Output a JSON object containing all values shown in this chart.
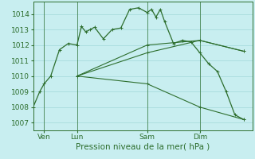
{
  "title": "Pression niveau de la mer( hPa )",
  "bg_color": "#c8eef0",
  "grid_color": "#a0d8d8",
  "line_color": "#2d6e2d",
  "marker": "+",
  "ylim": [
    1006.5,
    1014.8
  ],
  "yticks": [
    1007,
    1008,
    1009,
    1010,
    1011,
    1012,
    1013,
    1014
  ],
  "xlim": [
    0,
    100
  ],
  "xtick_positions": [
    5,
    20,
    52,
    76
  ],
  "xtick_labels": [
    "Ven",
    "Lun",
    "Sam",
    "Dim"
  ],
  "vlines": [
    5,
    20,
    52,
    76
  ],
  "series_main": {
    "x": [
      0,
      3,
      5,
      8,
      12,
      16,
      20,
      22,
      24,
      26,
      28,
      32,
      36,
      40,
      44,
      48,
      52,
      54,
      56,
      58,
      60,
      64,
      68,
      72,
      76,
      80,
      84,
      88,
      92,
      96
    ],
    "y": [
      1008.0,
      1009.0,
      1009.5,
      1010.0,
      1011.7,
      1012.1,
      1012.0,
      1013.2,
      1012.85,
      1013.0,
      1013.15,
      1012.4,
      1013.0,
      1013.1,
      1014.3,
      1014.4,
      1014.1,
      1014.3,
      1013.8,
      1014.3,
      1013.5,
      1012.1,
      1012.3,
      1012.2,
      1011.5,
      1010.8,
      1010.3,
      1009.0,
      1007.5,
      1007.2
    ]
  },
  "series_mid": {
    "x": [
      20,
      52,
      76,
      96
    ],
    "y": [
      1010.0,
      1011.5,
      1012.3,
      1011.6
    ]
  },
  "series_low": {
    "x": [
      20,
      52,
      76,
      96
    ],
    "y": [
      1010.0,
      1009.5,
      1008.0,
      1007.2
    ]
  },
  "series_upper": {
    "x": [
      20,
      52,
      76,
      96
    ],
    "y": [
      1010.0,
      1012.0,
      1012.3,
      1011.6
    ]
  },
  "xlabel_fontsize": 7.5,
  "tick_fontsize": 6.5
}
